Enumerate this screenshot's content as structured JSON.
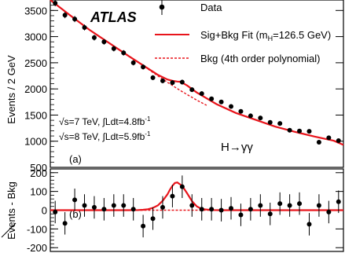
{
  "chart_data": [
    {
      "type": "scatter",
      "panel": "main",
      "ylabel": "Events / 2 GeV",
      "xlim": [
        100,
        160
      ],
      "ylim": [
        500,
        3700
      ],
      "yticks": [
        500,
        1000,
        1500,
        2000,
        2500,
        3000,
        3500
      ],
      "ytick_labels": [
        "500",
        "1000",
        "1500",
        "2000",
        "2500",
        "3000",
        "3500"
      ],
      "grid": false,
      "legend_position": "top-right",
      "experiment_label": "ATLAS",
      "info_lines": [
        {
          "pre": "√s=7 TeV, ∫Ldt=4.8fb",
          "sup": "-1"
        },
        {
          "pre": "√s=8 TeV, ∫Ldt=5.9fb",
          "sup": "-1"
        }
      ],
      "process_label": "H→γγ",
      "panel_label": "(a)",
      "legend": {
        "data": "Data",
        "fit_pre": "Sig+Bkg Fit  (m",
        "fit_sub": "H",
        "fit_post": "=126.5 GeV)",
        "bkg": "Bkg (4th order polynomial)"
      },
      "series": [
        {
          "name": "Data",
          "style": "points-with-errors",
          "x": [
            101,
            103,
            105,
            107,
            109,
            111,
            113,
            115,
            117,
            119,
            121,
            123,
            125,
            127,
            129,
            131,
            133,
            135,
            137,
            139,
            141,
            143,
            145,
            147,
            149,
            151,
            153,
            155,
            157,
            159
          ],
          "y": [
            3640,
            3410,
            3335,
            3175,
            2980,
            2900,
            2770,
            2690,
            2500,
            2420,
            2215,
            2155,
            2120,
            2130,
            1985,
            1910,
            1810,
            1750,
            1665,
            1570,
            1485,
            1445,
            1360,
            1340,
            1210,
            1195,
            1190,
            980,
            1065,
            1010
          ]
        },
        {
          "name": "Sig+Bkg Fit",
          "style": "solid-line",
          "x": [
            100,
            104,
            108,
            112,
            116,
            120,
            122,
            124,
            125,
            126,
            126.5,
            127,
            128,
            130,
            134,
            138,
            142,
            146,
            150,
            154,
            158,
            160
          ],
          "y": [
            3700,
            3410,
            3130,
            2880,
            2630,
            2390,
            2270,
            2180,
            2155,
            2140,
            2137,
            2120,
            2065,
            1930,
            1710,
            1540,
            1410,
            1280,
            1180,
            1090,
            1010,
            930
          ]
        },
        {
          "name": "Bkg",
          "style": "dashed-line",
          "x": [
            120,
            121,
            122,
            123,
            124,
            125,
            126,
            127,
            128,
            129,
            130,
            131,
            132
          ],
          "y": [
            2380,
            2315,
            2250,
            2187,
            2125,
            2065,
            2005,
            1948,
            1892,
            1838,
            1785,
            1735,
            1687
          ]
        }
      ]
    },
    {
      "type": "scatter",
      "panel": "residual",
      "ylabel": "Events - Bkg",
      "xlim": [
        100,
        160
      ],
      "ylim": [
        -220,
        220
      ],
      "yticks": [
        -200,
        -100,
        0,
        100,
        200
      ],
      "ytick_labels": [
        "-200",
        "-100",
        "0",
        "100",
        "200"
      ],
      "panel_label": "(b)",
      "series": [
        {
          "name": "Data",
          "style": "points-with-errors",
          "x": [
            101,
            103,
            105,
            107,
            109,
            111,
            113,
            115,
            117,
            119,
            121,
            123,
            125,
            127,
            129,
            131,
            133,
            135,
            137,
            139,
            141,
            143,
            145,
            147,
            149,
            151,
            153,
            155,
            157,
            159
          ],
          "y": [
            -10,
            -70,
            55,
            25,
            15,
            5,
            25,
            25,
            5,
            -85,
            -45,
            15,
            75,
            125,
            25,
            5,
            5,
            0,
            10,
            -25,
            5,
            25,
            -20,
            35,
            25,
            35,
            -75,
            25,
            -10,
            45
          ],
          "yerr": 60
        },
        {
          "name": "Sig+Bkg Fit",
          "style": "solid-line",
          "x": [
            100,
            116,
            118,
            119,
            120,
            121,
            122,
            123,
            124,
            124.5,
            125,
            125.5,
            126,
            127,
            128,
            129,
            130,
            131,
            133,
            135,
            160
          ],
          "y": [
            0,
            0,
            1,
            2,
            5,
            12,
            25,
            50,
            85,
            110,
            130,
            145,
            148,
            130,
            90,
            48,
            20,
            6,
            1,
            0,
            0
          ]
        },
        {
          "name": "Bkg",
          "style": "dashed-line",
          "x": [
            116,
            136
          ],
          "y": [
            0,
            0
          ]
        }
      ]
    }
  ]
}
